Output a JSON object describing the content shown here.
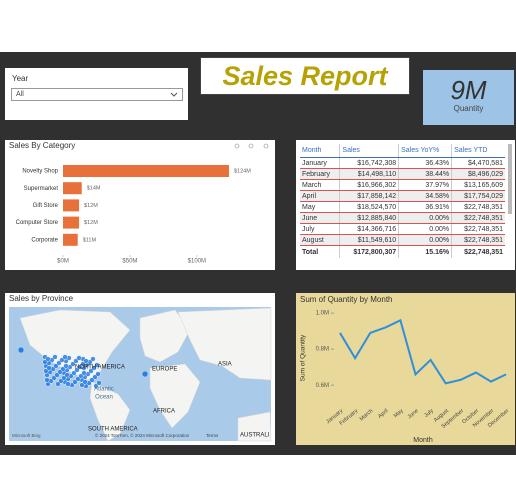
{
  "slicer": {
    "label": "Year",
    "value": "All"
  },
  "title": "Sales Report",
  "card": {
    "value": "9M",
    "label": "Quantity"
  },
  "table": {
    "columns": [
      "Month",
      "Sales",
      "Sales YoY%",
      "Sales YTD"
    ],
    "rows": [
      [
        "January",
        "$16,742,308",
        "36.43%",
        "$4,470,581"
      ],
      [
        "February",
        "$14,498,110",
        "38.44%",
        "$8,496,029"
      ],
      [
        "March",
        "$16,966,302",
        "37.97%",
        "$13,165,609"
      ],
      [
        "April",
        "$17,858,142",
        "34.58%",
        "$17,754,029"
      ],
      [
        "May",
        "$18,524,570",
        "36.91%",
        "$22,748,351"
      ],
      [
        "June",
        "$12,885,840",
        "0.00%",
        "$22,748,351"
      ],
      [
        "July",
        "$14,366,716",
        "0.00%",
        "$22,748,351"
      ],
      [
        "August",
        "$11,549,610",
        "0.00%",
        "$22,748,351"
      ]
    ],
    "total": [
      "Total",
      "$172,800,307",
      "15.16%",
      "$22,748,351"
    ]
  },
  "map": {
    "title": "Sales by Province",
    "labels": [
      "NORTH AMERICA",
      "EUROPE",
      "ASIA",
      "Atlantic",
      "Ocean",
      "AFRICA",
      "SOUTH AMERICA",
      "AUSTRALI"
    ],
    "attribution": "© 2024 TomTom, © 2024 Microsoft Corporation",
    "logo": "Microsoft Bing",
    "terms": "Terms"
  },
  "chart_data": [
    {
      "type": "bar",
      "orientation": "horizontal",
      "title": "Sales By Category",
      "categories": [
        "Novelty Shop",
        "Supermarket",
        "Gift Store",
        "Computer Store",
        "Corporate"
      ],
      "values": [
        124000000,
        14000000,
        12000000,
        12000000,
        11000000
      ],
      "value_labels": [
        "$124M",
        "$14M",
        "$12M",
        "$12M",
        "$11M"
      ],
      "color": "#e8703a",
      "xlim": [
        0,
        130000000
      ],
      "xticks": [
        {
          "value": 0,
          "label": "$0M"
        },
        {
          "value": 50000000,
          "label": "$50M"
        },
        {
          "value": 100000000,
          "label": "$100M"
        }
      ]
    },
    {
      "type": "line",
      "title": "Sum of Quantity by Month",
      "x_label": "Month",
      "y_label": "Sum of Quantity",
      "categories": [
        "January",
        "February",
        "March",
        "April",
        "May",
        "June",
        "July",
        "August",
        "September",
        "October",
        "November",
        "December"
      ],
      "values": [
        890000,
        750000,
        890000,
        920000,
        960000,
        660000,
        740000,
        610000,
        630000,
        670000,
        620000,
        660000
      ],
      "color": "#2f8fdb",
      "ylim": [
        490000,
        1045000
      ],
      "yticks": [
        {
          "value": 600000,
          "label": "0.6M"
        },
        {
          "value": 800000,
          "label": "0.8M"
        },
        {
          "value": 1000000,
          "label": "1.0M"
        }
      ]
    }
  ]
}
